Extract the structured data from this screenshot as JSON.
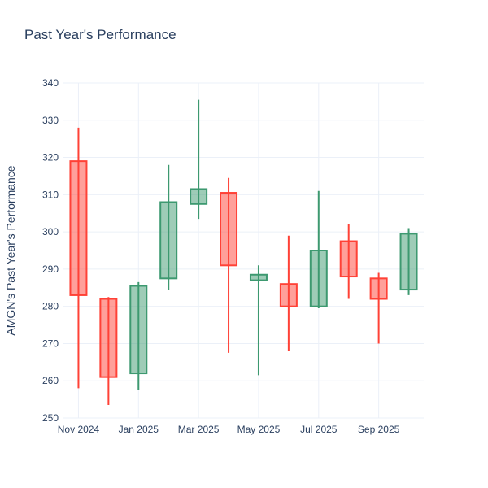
{
  "chart_data": {
    "type": "candlestick",
    "title": "Past Year's Performance",
    "ylabel": "AMGN's Past Year's Performance",
    "xlabel": "",
    "ylim": [
      250,
      340
    ],
    "ytick_step": 10,
    "grid": true,
    "legend": "none",
    "x_ticks": [
      {
        "index": 0,
        "label": "Nov 2024"
      },
      {
        "index": 2,
        "label": "Jan 2025"
      },
      {
        "index": 4,
        "label": "Mar 2025"
      },
      {
        "index": 6,
        "label": "May 2025"
      },
      {
        "index": 8,
        "label": "Jul 2025"
      },
      {
        "index": 10,
        "label": "Sep 2025"
      }
    ],
    "candles": [
      {
        "x": "Nov 2024",
        "open": 319,
        "high": 328,
        "low": 258,
        "close": 283
      },
      {
        "x": "Dec 2024",
        "open": 282,
        "high": 282.5,
        "low": 253.5,
        "close": 261
      },
      {
        "x": "Jan 2025",
        "open": 262,
        "high": 286.5,
        "low": 257.5,
        "close": 285.5
      },
      {
        "x": "Feb 2025",
        "open": 287.5,
        "high": 318,
        "low": 284.5,
        "close": 308
      },
      {
        "x": "Mar 2025",
        "open": 307.5,
        "high": 335.5,
        "low": 303.5,
        "close": 311.5
      },
      {
        "x": "Apr 2025",
        "open": 310.5,
        "high": 314.5,
        "low": 267.5,
        "close": 291
      },
      {
        "x": "May 2025",
        "open": 287,
        "high": 291,
        "low": 261.5,
        "close": 288.5
      },
      {
        "x": "Jun 2025",
        "open": 286,
        "high": 299,
        "low": 268,
        "close": 280
      },
      {
        "x": "Jul 2025",
        "open": 280,
        "high": 311,
        "low": 279.5,
        "close": 295
      },
      {
        "x": "Aug 2025",
        "open": 297.5,
        "high": 302,
        "low": 282,
        "close": 288
      },
      {
        "x": "Sep 2025",
        "open": 287.5,
        "high": 289,
        "low": 270,
        "close": 282
      },
      {
        "x": "Oct 2025",
        "open": 284.5,
        "high": 301,
        "low": 283,
        "close": 299.5
      }
    ],
    "style": {
      "increasing_line": "#3D9970",
      "increasing_fill": "rgba(61,153,112,0.5)",
      "decreasing_line": "#FF4136",
      "decreasing_fill": "rgba(255,65,54,0.5)",
      "grid_color": "#EBF0F8",
      "text_color": "#2A3F5F",
      "background": "#FFFFFF"
    }
  }
}
